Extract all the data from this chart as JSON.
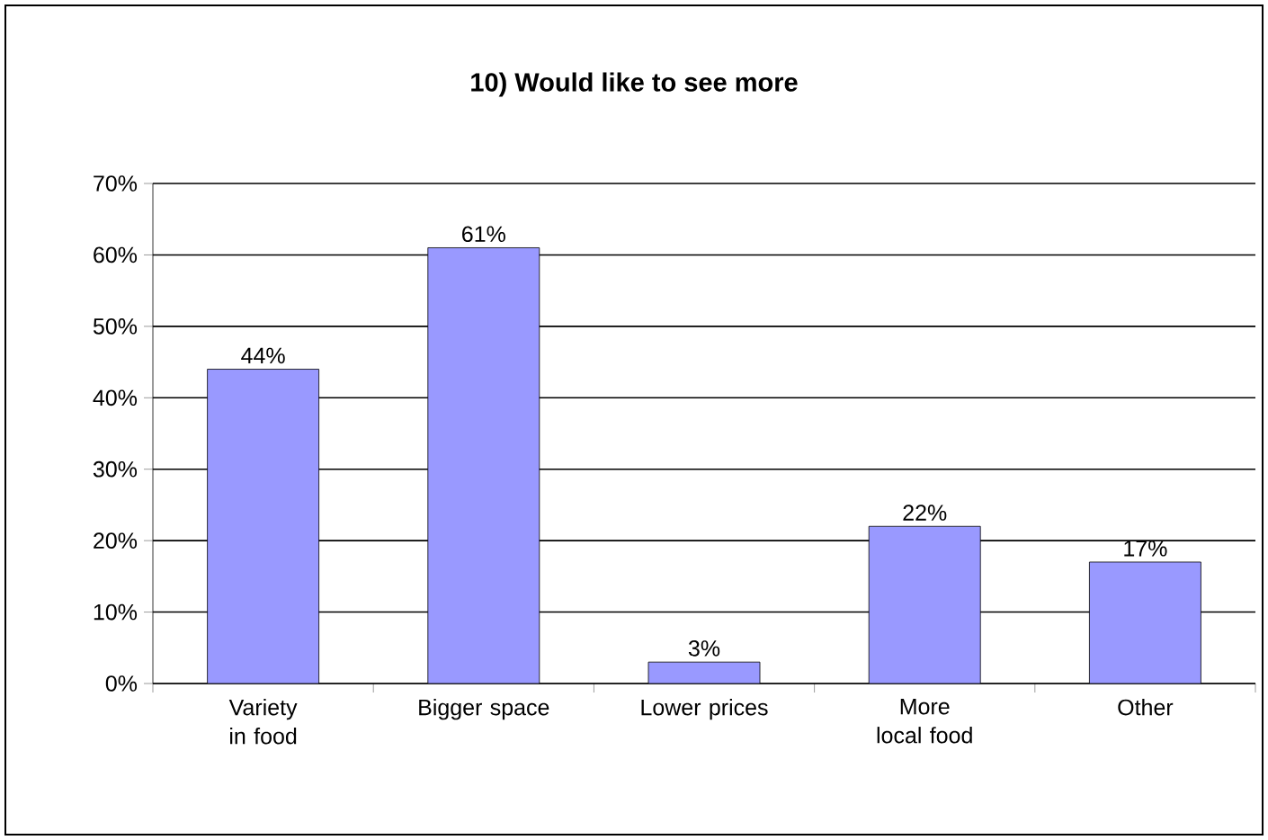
{
  "chart_data": {
    "type": "bar",
    "title": "10) Would like to see more",
    "categories": [
      "Variety in food",
      "Bigger space",
      "Lower prices",
      "More local food",
      "Other"
    ],
    "values": [
      44,
      61,
      3,
      22,
      17
    ],
    "value_labels": [
      "44%",
      "61%",
      "3%",
      "22%",
      "17%"
    ],
    "color": "#9999ff",
    "ylim": [
      0,
      70
    ],
    "yticks": [
      {
        "value": 0,
        "label": "0%"
      },
      {
        "value": 10,
        "label": "10%"
      },
      {
        "value": 20,
        "label": "20%"
      },
      {
        "value": 30,
        "label": "30%"
      },
      {
        "value": 40,
        "label": "40%"
      },
      {
        "value": 50,
        "label": "50%"
      },
      {
        "value": 60,
        "label": "60%"
      },
      {
        "value": 70,
        "label": "70%"
      }
    ],
    "grid": "y"
  }
}
